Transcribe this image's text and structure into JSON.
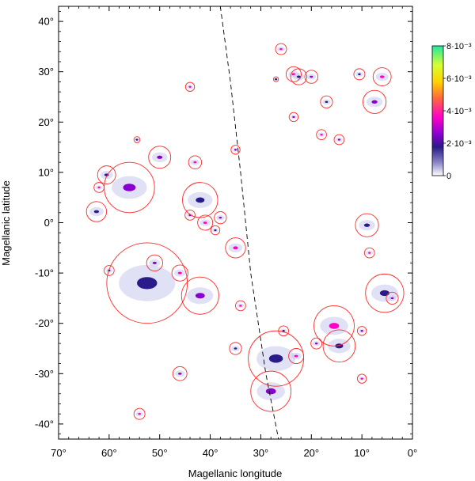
{
  "chart_data": {
    "type": "scatter",
    "xlabel": "Magellanic longitude",
    "ylabel": "Magellanic latitude",
    "xlim": [
      70,
      0
    ],
    "ylim": [
      -43,
      43
    ],
    "x_ticks": [
      {
        "value": 70,
        "label": "70°"
      },
      {
        "value": 60,
        "label": "60°"
      },
      {
        "value": 50,
        "label": "50°"
      },
      {
        "value": 40,
        "label": "40°"
      },
      {
        "value": 30,
        "label": "30°"
      },
      {
        "value": 20,
        "label": "20°"
      },
      {
        "value": 10,
        "label": "10°"
      },
      {
        "value": 0,
        "label": "0°"
      }
    ],
    "y_ticks": [
      {
        "value": 40,
        "label": "40°"
      },
      {
        "value": 30,
        "label": "30°"
      },
      {
        "value": 20,
        "label": "20°"
      },
      {
        "value": 10,
        "label": "10°"
      },
      {
        "value": 0,
        "label": "0°"
      },
      {
        "value": -10,
        "label": "-10°"
      },
      {
        "value": -20,
        "label": "-20°"
      },
      {
        "value": -30,
        "label": "-30°"
      },
      {
        "value": -40,
        "label": "-40°"
      }
    ],
    "colorbar": {
      "min": 0,
      "max": 0.008,
      "labels": [
        {
          "value": 0,
          "label": "0"
        },
        {
          "value": 0.002,
          "label": "2·10⁻³"
        },
        {
          "value": 0.004,
          "label": "4·10⁻³"
        },
        {
          "value": 0.006,
          "label": "6·10⁻³"
        },
        {
          "value": 0.008,
          "label": "8·10⁻³"
        }
      ],
      "colors": [
        "#ffffff",
        "#2a1a8a",
        "#8a00d0",
        "#ff00c8",
        "#ff6a3a",
        "#ffd000",
        "#d8ff30",
        "#20e8a0"
      ]
    },
    "dashed_line": [
      [
        38,
        43
      ],
      [
        36,
        28
      ],
      [
        34,
        10
      ],
      [
        32,
        -10
      ],
      [
        29,
        -30
      ],
      [
        26.5,
        -43
      ]
    ],
    "clouds": [
      {
        "lon": 60.5,
        "lat": 9.5,
        "r": 1.8
      },
      {
        "lon": 56,
        "lat": 7,
        "r": 5
      },
      {
        "lon": 62,
        "lat": 7,
        "r": 1
      },
      {
        "lon": 62.5,
        "lat": 2.2,
        "r": 2
      },
      {
        "lon": 50,
        "lat": 13,
        "r": 2.2
      },
      {
        "lon": 43,
        "lat": 12,
        "r": 1.3
      },
      {
        "lon": 42,
        "lat": 4.5,
        "r": 3.5
      },
      {
        "lon": 44,
        "lat": 1.5,
        "r": 1
      },
      {
        "lon": 41,
        "lat": 0,
        "r": 1.5
      },
      {
        "lon": 39,
        "lat": -1.5,
        "r": 0.9
      },
      {
        "lon": 38,
        "lat": 1,
        "r": 1.2
      },
      {
        "lon": 44,
        "lat": 27,
        "r": 0.9
      },
      {
        "lon": 54.5,
        "lat": 16.5,
        "r": 0.6
      },
      {
        "lon": 35,
        "lat": 14.5,
        "r": 0.9
      },
      {
        "lon": 35,
        "lat": -5,
        "r": 2
      },
      {
        "lon": 52.5,
        "lat": -12,
        "r": 8
      },
      {
        "lon": 51,
        "lat": -8,
        "r": 1.6
      },
      {
        "lon": 46,
        "lat": -10,
        "r": 1.6
      },
      {
        "lon": 60,
        "lat": -9.5,
        "r": 1
      },
      {
        "lon": 42,
        "lat": -14.5,
        "r": 3.7
      },
      {
        "lon": 34,
        "lat": -16.5,
        "r": 1
      },
      {
        "lon": 35,
        "lat": -25,
        "r": 1.2
      },
      {
        "lon": 46,
        "lat": -30,
        "r": 1.4
      },
      {
        "lon": 54,
        "lat": -38,
        "r": 1.1
      },
      {
        "lon": 27,
        "lat": -27,
        "r": 5.5
      },
      {
        "lon": 28,
        "lat": -33.5,
        "r": 4
      },
      {
        "lon": 23,
        "lat": -26.5,
        "r": 1.5
      },
      {
        "lon": 25.5,
        "lat": -21.5,
        "r": 1
      },
      {
        "lon": 19,
        "lat": -24,
        "r": 1.1
      },
      {
        "lon": 15.5,
        "lat": -20.5,
        "r": 4
      },
      {
        "lon": 14.5,
        "lat": -24.5,
        "r": 3.2
      },
      {
        "lon": 10,
        "lat": -21.5,
        "r": 0.9
      },
      {
        "lon": 10,
        "lat": -31,
        "r": 0.9
      },
      {
        "lon": 5.5,
        "lat": -14,
        "r": 3.8
      },
      {
        "lon": 4,
        "lat": -15,
        "r": 1.2
      },
      {
        "lon": 8.5,
        "lat": -6,
        "r": 1
      },
      {
        "lon": 9,
        "lat": -0.5,
        "r": 2.3
      },
      {
        "lon": 7.5,
        "lat": 24,
        "r": 2.3
      },
      {
        "lon": 6,
        "lat": 29,
        "r": 1.8
      },
      {
        "lon": 10.5,
        "lat": 29.5,
        "r": 1.1
      },
      {
        "lon": 14.5,
        "lat": 16.5,
        "r": 1
      },
      {
        "lon": 18,
        "lat": 17.5,
        "r": 1
      },
      {
        "lon": 17,
        "lat": 24,
        "r": 1.2
      },
      {
        "lon": 20,
        "lat": 29,
        "r": 1.3
      },
      {
        "lon": 23.5,
        "lat": 29.5,
        "r": 1.5
      },
      {
        "lon": 22.5,
        "lat": 29,
        "r": 1.6
      },
      {
        "lon": 23.5,
        "lat": 21,
        "r": 0.9
      },
      {
        "lon": 26,
        "lat": 34.5,
        "r": 1.1
      },
      {
        "lon": 27,
        "lat": 28.5,
        "r": 0.5
      }
    ]
  }
}
